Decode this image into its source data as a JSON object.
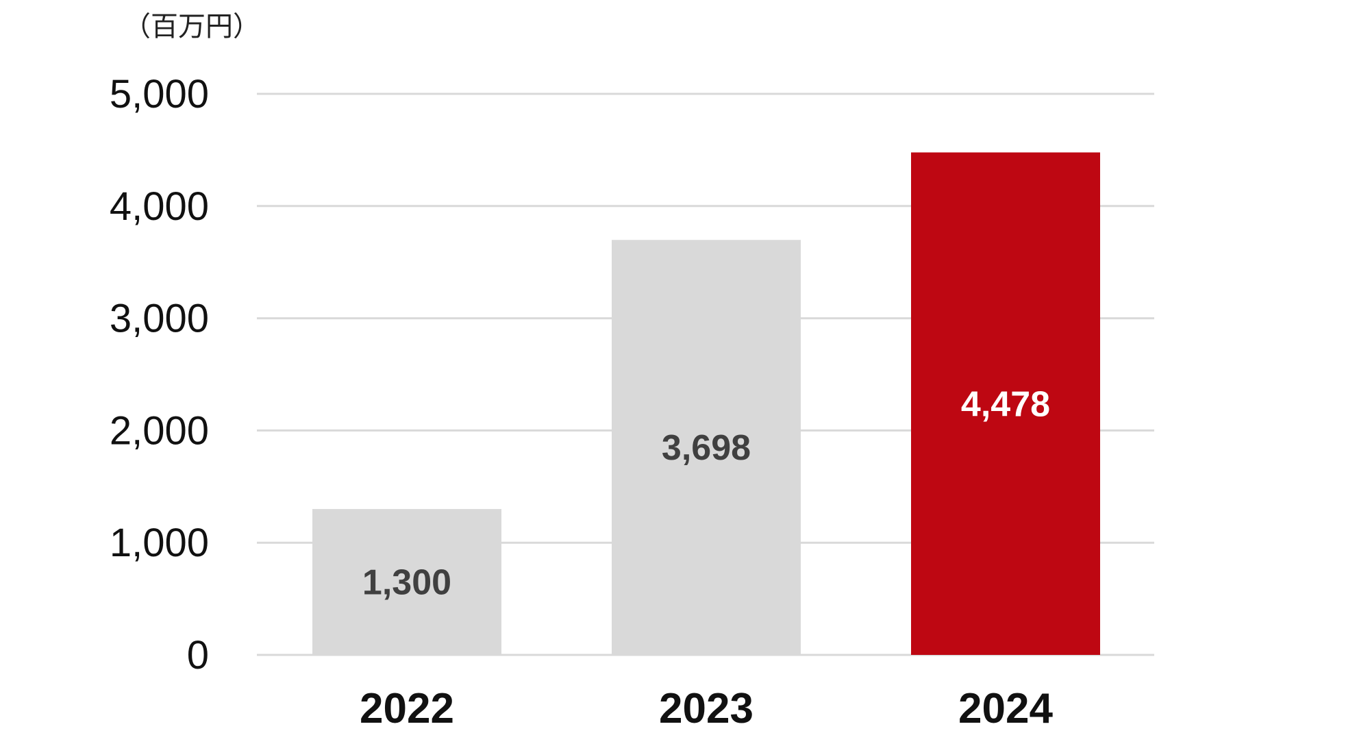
{
  "chart_data": {
    "type": "bar",
    "title": "",
    "unit_label": "（百万円）",
    "xlabel": "",
    "ylabel": "",
    "categories": [
      "2022",
      "2023",
      "2024"
    ],
    "values": [
      1300,
      3698,
      4478
    ],
    "data_labels": [
      "1,300",
      "3,698",
      "4,478"
    ],
    "ylim": [
      0,
      5000
    ],
    "yticks": [
      0,
      1000,
      2000,
      3000,
      4000,
      5000
    ],
    "ytick_labels": [
      "0",
      "1,000",
      "2,000",
      "3,000",
      "4,000",
      "5,000"
    ],
    "grid": true,
    "legend": "none",
    "colors": {
      "bars": [
        "#d9d9d9",
        "#d9d9d9",
        "#be0712"
      ],
      "data_label_text": [
        "#404040",
        "#404040",
        "#ffffff"
      ],
      "grid": "#d9d9d9",
      "axis": "#d9d9d9"
    }
  }
}
